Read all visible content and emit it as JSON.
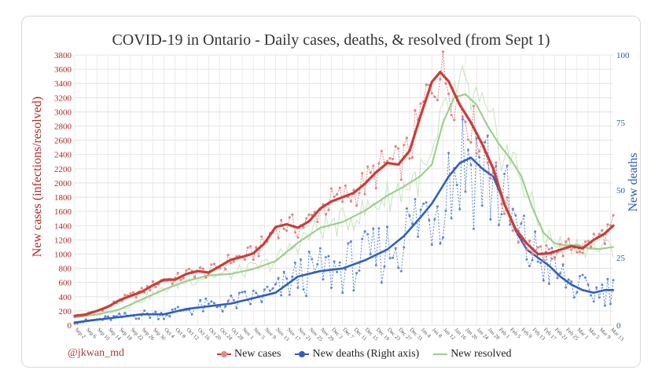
{
  "credit": "@jkwan_md",
  "colors": {
    "cases": "#cc3d36",
    "cases_raw": "#e0898a",
    "deaths": "#2f5fbf",
    "deaths_raw": "#5b86d6",
    "resolved": "#9fcf8f",
    "resolved_raw": "#c7e4bd",
    "left_axis": "#b02a26",
    "right_axis": "#2b5ab7",
    "grid": "#dddddd"
  },
  "chart_data": {
    "type": "line",
    "title": "COVID-19 in Ontario - Daily cases, deaths, & resolved (from Sept 1)",
    "ylabel": "New cases (infections/resolved)",
    "y2label": "New deaths",
    "ylim": [
      0,
      3800
    ],
    "y2lim": [
      0,
      100
    ],
    "yticks": [
      "0",
      "200",
      "400",
      "600",
      "800",
      "1000",
      "1200",
      "1400",
      "1600",
      "1800",
      "2000",
      "2200",
      "2400",
      "2600",
      "2800",
      "3000",
      "3200",
      "3400",
      "3600",
      "3800"
    ],
    "y2ticks": [
      "0",
      "25",
      "50",
      "75",
      "100"
    ],
    "x_tick_labels": [
      "Sep 2",
      "Sep 6",
      "Sep 10",
      "Sep 14",
      "Sep 18",
      "Sep 22",
      "Sep 26",
      "Sep 30",
      "Oct 4",
      "Oct 8",
      "Oct 12",
      "Oct 16",
      "Oct 20",
      "Oct 24",
      "Oct 28",
      "Nov 1",
      "Nov 5",
      "Nov 9",
      "Nov 13",
      "Nov 17",
      "Nov 21",
      "Nov 25",
      "Nov 29",
      "Dec 3",
      "Dec 7",
      "Dec 11",
      "Dec 15",
      "Dec 19",
      "Dec 23",
      "Dec 27",
      "Dec 31",
      "Jan 4",
      "Jan 8",
      "Jan 12",
      "Jan 16",
      "Jan 20",
      "Jan 24",
      "Jan 28",
      "Feb 1",
      "Feb 5",
      "Feb 9",
      "Feb 13",
      "Feb 17",
      "Feb 21",
      "Feb 25",
      "Mar 1",
      "Mar 5",
      "Mar 9",
      "Mar 13"
    ],
    "grid": true,
    "legend_position": "bottom",
    "series": [
      {
        "name": "New cases",
        "axis": "left",
        "x_index": [
          0,
          4,
          8,
          12,
          16,
          20,
          24,
          28,
          32,
          36,
          40,
          44,
          48,
          52,
          56,
          60,
          64,
          68,
          72,
          76,
          80,
          84,
          88,
          92,
          96,
          100,
          104,
          108,
          112,
          116,
          120,
          124,
          128,
          131,
          134,
          138,
          142,
          146,
          150,
          154,
          158,
          162,
          166,
          170,
          174,
          178,
          182,
          186,
          190,
          193
        ],
        "values": [
          130,
          150,
          200,
          260,
          350,
          410,
          470,
          560,
          640,
          640,
          720,
          760,
          740,
          830,
          920,
          960,
          1010,
          1150,
          1380,
          1420,
          1370,
          1460,
          1640,
          1740,
          1800,
          1860,
          1990,
          2150,
          2280,
          2260,
          2450,
          2950,
          3420,
          3560,
          3430,
          3100,
          2850,
          2550,
          2200,
          1700,
          1350,
          1150,
          1000,
          1010,
          1060,
          1110,
          1080,
          1200,
          1290,
          1400
        ]
      },
      {
        "name": "New deaths (Right axis)",
        "axis": "right",
        "x_index": [
          0,
          8,
          16,
          24,
          32,
          40,
          48,
          56,
          64,
          72,
          80,
          88,
          96,
          104,
          112,
          118,
          124,
          128,
          134,
          138,
          142,
          146,
          150,
          154,
          158,
          162,
          166,
          170,
          174,
          178,
          182,
          186,
          190,
          193
        ],
        "values": [
          1,
          2,
          3,
          4,
          4,
          6,
          7,
          8,
          10,
          12,
          18,
          20,
          21,
          24,
          28,
          33,
          40,
          45,
          55,
          60,
          62,
          58,
          55,
          45,
          35,
          28,
          25,
          22,
          18,
          15,
          13,
          12,
          13,
          13
        ]
      },
      {
        "name": "New resolved",
        "axis": "left",
        "x_index": [
          0,
          8,
          16,
          24,
          32,
          40,
          48,
          56,
          64,
          72,
          80,
          88,
          96,
          104,
          112,
          118,
          124,
          128,
          132,
          136,
          140,
          144,
          148,
          152,
          156,
          160,
          164,
          168,
          172,
          176,
          180,
          184,
          188,
          193
        ],
        "values": [
          110,
          150,
          220,
          360,
          500,
          620,
          700,
          720,
          790,
          900,
          1160,
          1370,
          1450,
          1610,
          1820,
          1950,
          2100,
          2260,
          2850,
          3200,
          3250,
          3100,
          2800,
          2550,
          2350,
          2100,
          1650,
          1300,
          1150,
          1120,
          1130,
          1080,
          1070,
          1100
        ]
      }
    ]
  }
}
